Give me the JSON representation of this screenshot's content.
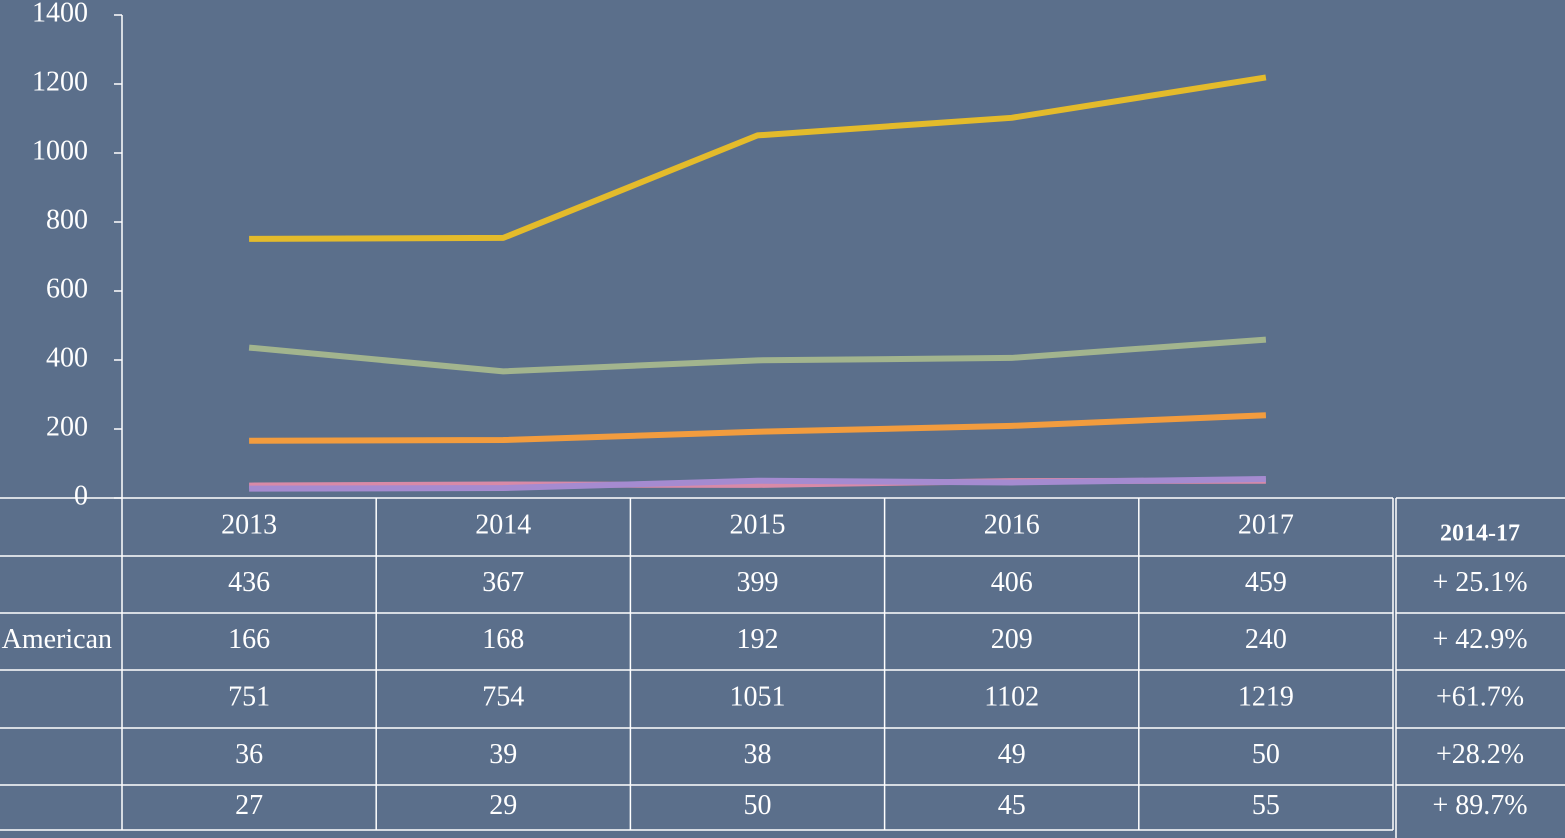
{
  "chart_data": {
    "type": "line",
    "categories": [
      "2013",
      "2014",
      "2015",
      "2016",
      "2017"
    ],
    "series": [
      {
        "color": "#a2b48e",
        "values": [
          436,
          367,
          399,
          406,
          459
        ]
      },
      {
        "name": "American",
        "color": "#f29c3e",
        "values": [
          166,
          168,
          192,
          209,
          240
        ]
      },
      {
        "color": "#e4bb2b",
        "values": [
          751,
          754,
          1051,
          1102,
          1219
        ]
      },
      {
        "color": "#d88aa8",
        "values": [
          36,
          39,
          38,
          49,
          50
        ]
      },
      {
        "color": "#a58bd0",
        "values": [
          27,
          29,
          50,
          45,
          55
        ]
      }
    ],
    "ylim": [
      0,
      1400
    ],
    "yticks": [
      0,
      200,
      400,
      600,
      800,
      1000,
      1200,
      1400
    ],
    "change_header": "2014-17",
    "change": [
      "+ 25.1%",
      "+ 42.9%",
      "+61.7%",
      "+28.2%",
      "+ 89.7%"
    ]
  }
}
